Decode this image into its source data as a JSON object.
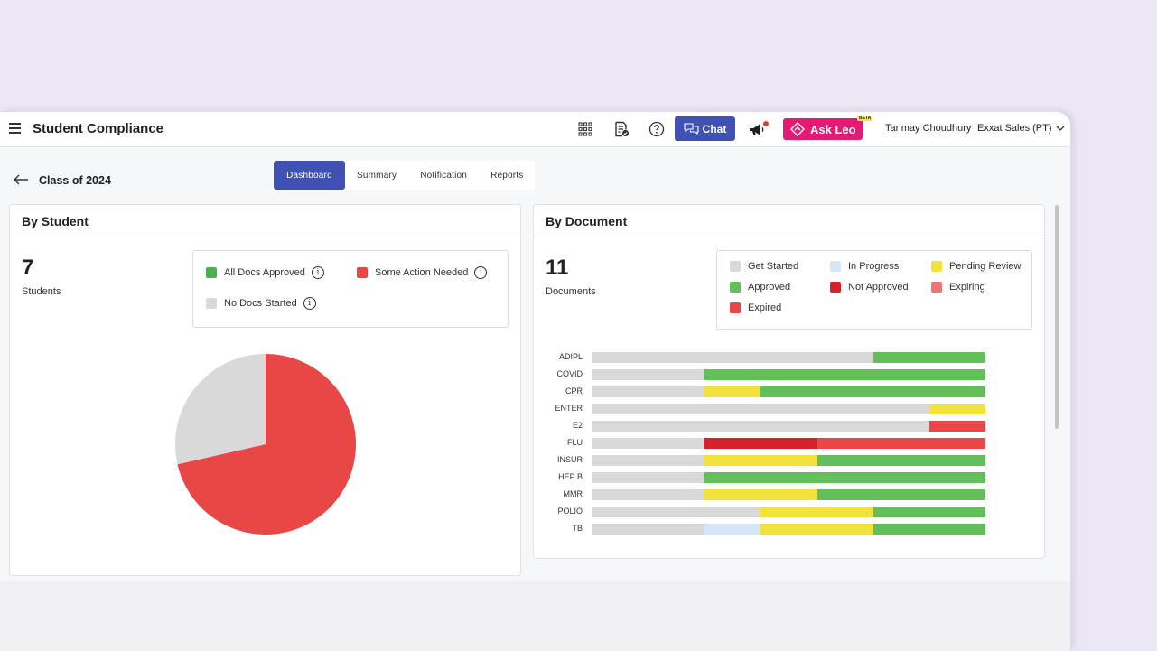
{
  "app": {
    "title": "Student Compliance"
  },
  "topbar": {
    "chat_label": "Chat",
    "ask_leo_label": "Ask Leo",
    "beta_label": "BETA",
    "user_name": "Tanmay Choudhury",
    "org_name": "Exxat Sales (PT)",
    "icons": [
      "menu-icon",
      "apps-grid-icon",
      "document-check-icon",
      "help-icon",
      "chat-icon",
      "megaphone-icon",
      "ask-leo-icon",
      "chevron-down-icon"
    ]
  },
  "page": {
    "back_label": "Class of 2024",
    "tabs": [
      {
        "label": "Dashboard",
        "active": true
      },
      {
        "label": "Summary",
        "active": false
      },
      {
        "label": "Notification",
        "active": false
      },
      {
        "label": "Reports",
        "active": false
      }
    ]
  },
  "colors": {
    "get_started": "#d9d9d9",
    "in_progress": "#d4e6f7",
    "pending_review": "#f4e23c",
    "approved": "#63bf5a",
    "not_approved": "#d32228",
    "expiring": "#ef7474",
    "expired": "#e94646",
    "brand": "#3f51b5",
    "ask_leo": "#e51a73"
  },
  "by_student": {
    "title": "By Student",
    "count": "7",
    "count_label": "Students",
    "legend": [
      {
        "label": "All Docs Approved",
        "color": "#4caf50"
      },
      {
        "label": "Some Action Needed",
        "color": "#e94646"
      },
      {
        "label": "No Docs Started",
        "color": "#d9d9d9"
      }
    ]
  },
  "by_document": {
    "title": "By Document",
    "count": "11",
    "count_label": "Documents",
    "legend": [
      {
        "label": "Get Started",
        "color": "#d9d9d9"
      },
      {
        "label": "In Progress",
        "color": "#d4e6f7"
      },
      {
        "label": "Pending Review",
        "color": "#f4e23c"
      },
      {
        "label": "Approved",
        "color": "#63bf5a"
      },
      {
        "label": "Not Approved",
        "color": "#d32228"
      },
      {
        "label": "Expiring",
        "color": "#ef7474"
      },
      {
        "label": "Expired",
        "color": "#e94646"
      }
    ]
  },
  "chart_data": [
    {
      "type": "pie",
      "title": "By Student",
      "slices": [
        {
          "label": "Some Action Needed",
          "value": 5,
          "color": "#e94646"
        },
        {
          "label": "No Docs Started",
          "value": 2,
          "color": "#d9d9d9"
        }
      ]
    },
    {
      "type": "bar",
      "orientation": "horizontal",
      "stacked": true,
      "title": "By Document",
      "categories": [
        "ADIPL",
        "COVID",
        "CPR",
        "ENTER",
        "E2",
        "FLU",
        "INSUR",
        "HEP B",
        "MMR",
        "POLIO",
        "TB"
      ],
      "series": [
        {
          "name": "Get Started",
          "color": "#d9d9d9",
          "values": [
            5,
            2,
            2,
            6,
            6,
            2,
            2,
            2,
            2,
            3,
            2
          ]
        },
        {
          "name": "In Progress",
          "color": "#d4e6f7",
          "values": [
            0,
            0,
            0,
            0,
            0,
            0,
            0,
            0,
            0,
            0,
            1
          ]
        },
        {
          "name": "Pending Review",
          "color": "#f4e23c",
          "values": [
            0,
            0,
            1,
            1,
            0,
            0,
            2,
            0,
            2,
            2,
            2
          ]
        },
        {
          "name": "Approved",
          "color": "#63bf5a",
          "values": [
            2,
            5,
            4,
            0,
            0,
            0,
            3,
            5,
            3,
            2,
            2
          ]
        },
        {
          "name": "Not Approved",
          "color": "#d32228",
          "values": [
            0,
            0,
            0,
            0,
            0,
            2,
            0,
            0,
            0,
            0,
            0
          ]
        },
        {
          "name": "Expiring",
          "color": "#ef7474",
          "values": [
            0,
            0,
            0,
            0,
            0,
            0,
            0,
            0,
            0,
            0,
            0
          ]
        },
        {
          "name": "Expired",
          "color": "#e94646",
          "values": [
            0,
            0,
            0,
            0,
            1,
            3,
            0,
            0,
            0,
            0,
            0
          ]
        }
      ],
      "total_per_category": 7
    }
  ]
}
